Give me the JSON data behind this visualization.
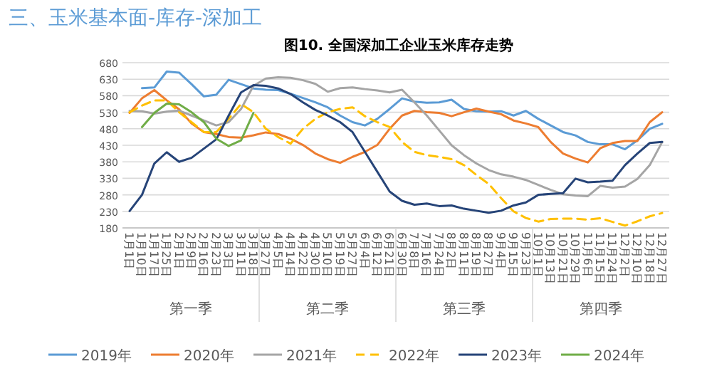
{
  "chart_data": {
    "type": "line",
    "title": "三、玉米基本面-库存-深加工",
    "subtitle": "图10. 全国深加工企业玉米库存走势",
    "categories": [
      "1月1日",
      "1月10日",
      "1月17日",
      "1月25日",
      "2月1日",
      "2月9日",
      "2月16日",
      "2月23日",
      "3月3日",
      "3月11日",
      "3月18日",
      "3月27日",
      "4月5日",
      "4月14日",
      "4月22日",
      "4月30日",
      "5月10日",
      "5月19日",
      "5月27日",
      "6月4日",
      "6月12日",
      "6月21日",
      "6月30日",
      "7月8日",
      "7月16日",
      "7月24日",
      "8月2日",
      "8月11日",
      "8月19日",
      "8月27日",
      "9月4日",
      "9月15日",
      "9月23日",
      "10月1日",
      "10月13日",
      "10月21日",
      "10月29日",
      "11月6日",
      "11月15日",
      "11月24日",
      "12月2日",
      "12月10日",
      "12月18日",
      "12月27日"
    ],
    "series": [
      {
        "name": "2019年",
        "color": "#5b9bd5",
        "values": [
          null,
          603,
          605,
          653,
          650,
          615,
          578,
          583,
          628,
          615,
          602,
          598,
          597,
          586,
          573,
          560,
          545,
          520,
          500,
          490,
          510,
          540,
          572,
          562,
          559,
          560,
          568,
          540,
          533,
          532,
          533,
          520,
          534,
          510,
          490,
          470,
          460,
          440,
          433,
          433,
          418,
          445,
          480,
          495
        ]
      },
      {
        "name": "2020年",
        "color": "#ed7d31",
        "values": [
          528,
          572,
          597,
          566,
          539,
          496,
          470,
          464,
          455,
          453,
          460,
          469,
          464,
          450,
          431,
          405,
          388,
          377,
          395,
          410,
          431,
          480,
          520,
          534,
          530,
          528,
          518,
          530,
          541,
          532,
          524,
          505,
          496,
          485,
          440,
          405,
          390,
          378,
          421,
          437,
          443,
          443,
          500,
          530
        ]
      },
      {
        "name": "2021年",
        "color": "#a5a5a5",
        "values": [
          534,
          533,
          526,
          532,
          535,
          520,
          505,
          490,
          500,
          540,
          610,
          632,
          636,
          634,
          627,
          616,
          592,
          603,
          605,
          600,
          596,
          590,
          598,
          560,
          520,
          475,
          430,
          400,
          375,
          355,
          342,
          335,
          325,
          310,
          295,
          282,
          278,
          276,
          307,
          302,
          305,
          328,
          370,
          440
        ]
      },
      {
        "name": "2022年",
        "color": "#ffc000",
        "line_style": "dashed",
        "values": [
          530,
          550,
          566,
          566,
          530,
          500,
          470,
          470,
          510,
          555,
          530,
          480,
          455,
          435,
          480,
          510,
          530,
          540,
          545,
          518,
          500,
          485,
          440,
          410,
          400,
          395,
          388,
          370,
          340,
          313,
          270,
          230,
          210,
          199,
          207,
          208,
          208,
          205,
          209,
          198,
          187,
          200,
          215,
          225
        ]
      },
      {
        "name": "2023年",
        "color": "#264478",
        "values": [
          231,
          280,
          375,
          409,
          380,
          392,
          420,
          448,
          520,
          590,
          612,
          610,
          602,
          585,
          560,
          537,
          520,
          500,
          470,
          410,
          350,
          290,
          262,
          250,
          254,
          246,
          248,
          238,
          232,
          226,
          232,
          248,
          257,
          280,
          283,
          285,
          329,
          318,
          320,
          323,
          370,
          405,
          437,
          440
        ]
      },
      {
        "name": "2024年",
        "color": "#70ad47",
        "values": [
          null,
          485,
          528,
          556,
          554,
          530,
          500,
          450,
          428,
          445,
          528,
          null,
          null,
          null,
          null,
          null,
          null,
          null,
          null,
          null,
          null,
          null,
          null,
          null,
          null,
          null,
          null,
          null,
          null,
          null,
          null,
          null,
          null,
          null,
          null,
          null,
          null,
          null,
          null,
          null,
          null,
          null,
          null,
          null
        ]
      }
    ],
    "ylim": [
      180,
      680
    ],
    "yticks": [
      180,
      230,
      280,
      330,
      380,
      430,
      480,
      530,
      580,
      630,
      680
    ],
    "grid": "y",
    "legend": "bottom",
    "annotations": [
      "第一季",
      "第二季",
      "第三季",
      "第四季"
    ]
  }
}
